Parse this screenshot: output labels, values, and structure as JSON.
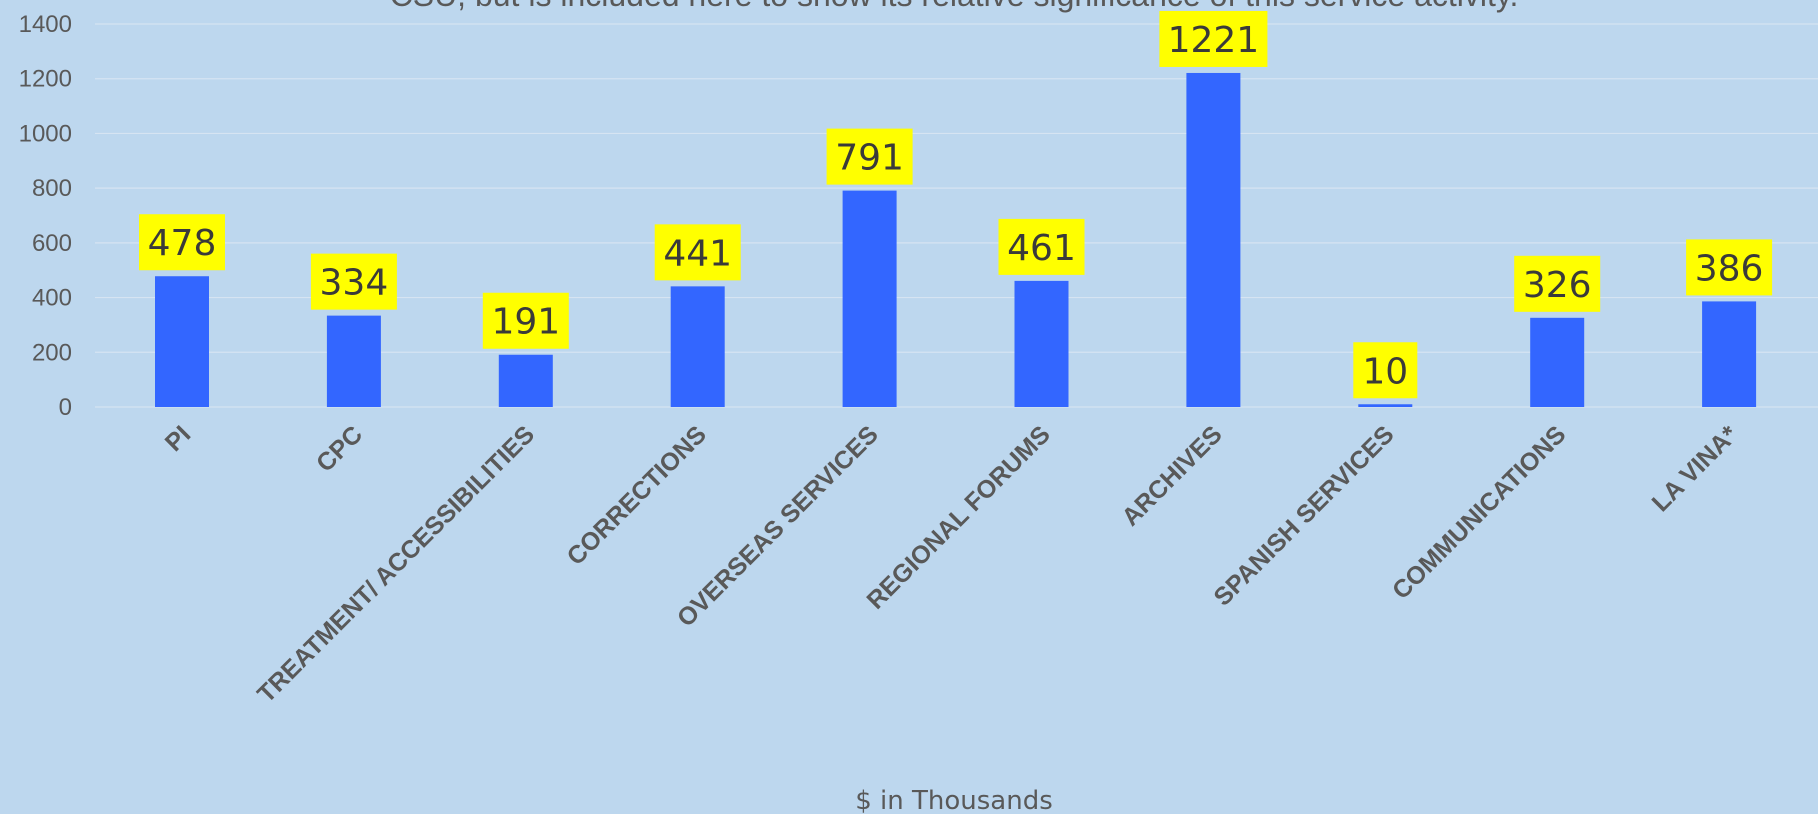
{
  "chart_data": {
    "type": "bar",
    "subtitle": "CSU,  but is included here to show its relative significance of this service activity.",
    "categories": [
      "PI",
      "CPC",
      "TREATMENT/ ACCESSIBILITIES",
      "CORRECTIONS",
      "OVERSEAS SERVICES",
      "REGIONAL FORUMS",
      "ARCHIVES",
      "SPANISH SERVICES",
      "COMMUNICATIONS",
      "LA VINA*"
    ],
    "values": [
      478,
      334,
      191,
      441,
      791,
      461,
      1221,
      10,
      326,
      386
    ],
    "xlabel": "$ in Thousands",
    "ylabel": "",
    "ylim": [
      0,
      1400
    ],
    "yticks": [
      0,
      200,
      400,
      600,
      800,
      1000,
      1200,
      1400
    ],
    "grid": true,
    "legend": "none",
    "colors": {
      "bar": "#3366ff",
      "data_label_bg": "#ffff00",
      "background": "#bdd7ee",
      "gridline": "#d6e4f2",
      "text": "#595959"
    }
  }
}
